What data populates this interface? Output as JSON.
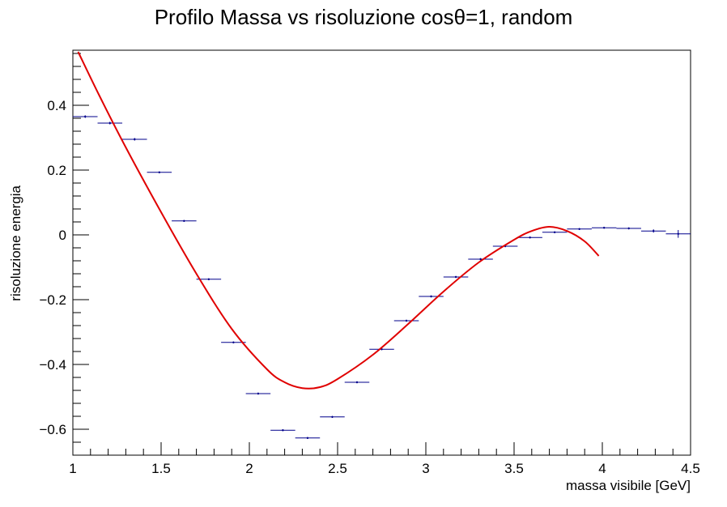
{
  "chart_data": {
    "type": "scatter",
    "title": "Profilo Massa vs risoluzione cosθ=1,  random",
    "xlabel": "massa visibile [GeV]",
    "ylabel": "risoluzione energia",
    "xlim": [
      1.0,
      4.5
    ],
    "ylim": [
      -0.68,
      0.57
    ],
    "grid": false,
    "x_ticks": [
      1,
      1.5,
      2,
      2.5,
      3,
      3.5,
      4,
      4.5
    ],
    "x_tick_labels": [
      "1",
      "1.5",
      "2",
      "2.5",
      "3",
      "3.5",
      "4",
      "4.5"
    ],
    "y_ticks": [
      -0.6,
      -0.4,
      -0.2,
      0,
      0.2,
      0.4
    ],
    "y_tick_labels": [
      "−0.6",
      "−0.4",
      "−0.2",
      "0",
      "0.2",
      "0.4"
    ],
    "colors": {
      "profile": "#00008b",
      "fit": "#e00000",
      "axes": "#000000"
    },
    "profile": {
      "bin_width": 0.14,
      "x": [
        1.07,
        1.21,
        1.35,
        1.49,
        1.63,
        1.77,
        1.91,
        2.05,
        2.19,
        2.33,
        2.47,
        2.61,
        2.75,
        2.89,
        3.03,
        3.17,
        3.31,
        3.45,
        3.59,
        3.73,
        3.87,
        4.01,
        4.15,
        4.29,
        4.43
      ],
      "y": [
        0.365,
        0.345,
        0.295,
        0.193,
        0.043,
        -0.137,
        -0.332,
        -0.49,
        -0.603,
        -0.627,
        -0.562,
        -0.455,
        -0.353,
        -0.265,
        -0.19,
        -0.13,
        -0.075,
        -0.035,
        -0.008,
        0.008,
        0.018,
        0.022,
        0.02,
        0.012,
        0.003
      ],
      "yerr": [
        0.004,
        0.004,
        0.004,
        0.003,
        0.003,
        0.003,
        0.003,
        0.003,
        0.003,
        0.003,
        0.003,
        0.003,
        0.003,
        0.003,
        0.003,
        0.003,
        0.003,
        0.003,
        0.003,
        0.003,
        0.003,
        0.003,
        0.003,
        0.005,
        0.012
      ]
    },
    "fit": {
      "x_range": [
        1.03,
        3.98
      ],
      "x": [
        1.03,
        1.15,
        1.3,
        1.5,
        1.7,
        1.9,
        2.1,
        2.2,
        2.3,
        2.4,
        2.5,
        2.7,
        2.9,
        3.1,
        3.3,
        3.5,
        3.6,
        3.7,
        3.8,
        3.9,
        3.98
      ],
      "y": [
        0.565,
        0.43,
        0.27,
        0.07,
        -0.12,
        -0.29,
        -0.415,
        -0.455,
        -0.473,
        -0.47,
        -0.445,
        -0.37,
        -0.275,
        -0.175,
        -0.085,
        -0.015,
        0.012,
        0.025,
        0.012,
        -0.02,
        -0.065
      ]
    }
  }
}
